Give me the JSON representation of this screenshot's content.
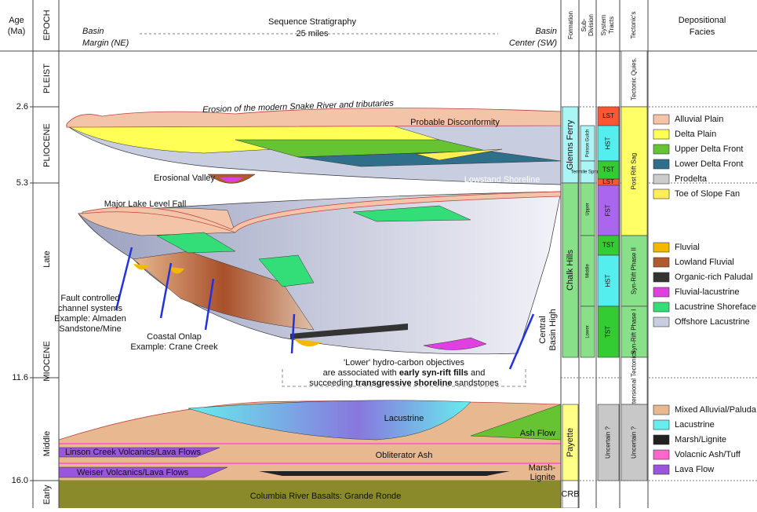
{
  "header": {
    "age_label": [
      "Age",
      "(Ma)"
    ],
    "epoch_label": "EPOCH",
    "title": "Sequence Stratigraphy",
    "scale": "25 miles",
    "left": [
      "Basin",
      "Margin (NE)"
    ],
    "right": [
      "Basin",
      "Center (SW)"
    ],
    "formation": "Formation",
    "subdivision": [
      "Sub-",
      "Division"
    ],
    "system_tracts": [
      "System",
      "Tracts"
    ],
    "tectonics": "Tectonic's",
    "facies": [
      "Depositional",
      "Facies"
    ]
  },
  "ages": [
    "2.6",
    "5.3",
    "11.6",
    "16.0"
  ],
  "epochs": [
    "PLEIST",
    "PLIOCENE",
    "Late",
    "MIOCENE",
    "Middle",
    "Early"
  ],
  "formations": [
    {
      "name": "Glenns Ferry",
      "color": "#aaf5f5"
    },
    {
      "name": "Chalk Hills",
      "color": "#88e088"
    },
    {
      "name": "Payette",
      "color": "#ffff88"
    },
    {
      "name": "CRB",
      "color": "#ffffff"
    }
  ],
  "subdivisions": [
    {
      "name": "Poison Gulch",
      "color": "#aaf5f5"
    },
    {
      "name": "Tenmile Springs",
      "color": "#aaf5f5"
    },
    {
      "name": "Upper",
      "color": "#88e088"
    },
    {
      "name": "Middle",
      "color": "#88e088"
    },
    {
      "name": "Lower",
      "color": "#88e088"
    }
  ],
  "system_tracts": [
    {
      "name": "LST",
      "color": "#ff5533"
    },
    {
      "name": "HST",
      "color": "#55eeee"
    },
    {
      "name": "TST",
      "color": "#33cc33"
    },
    {
      "name": "LST",
      "color": "#ff5533"
    },
    {
      "name": "FST",
      "color": "#aa66ee"
    },
    {
      "name": "TST",
      "color": "#33cc33"
    },
    {
      "name": "HST",
      "color": "#55eeee"
    },
    {
      "name": "TST",
      "color": "#33cc33"
    },
    {
      "name": "Uncertain ?",
      "color": "#c8c8c8"
    }
  ],
  "tectonics": [
    {
      "name": "Tectonic Quies.",
      "color": "#ffffff"
    },
    {
      "name": "Post Rift Sag",
      "color": "#ffff66"
    },
    {
      "name": "Syn-Rift Phase II",
      "color": "#88e088"
    },
    {
      "name": "Syn-Rift Phase I",
      "color": "#88e088"
    },
    {
      "name": "Extensional Tectonics",
      "color": "#ffffff"
    },
    {
      "name": "Uncertain ?",
      "color": "#c8c8c8"
    }
  ],
  "legend": [
    [
      {
        "label": "Alluvial Plain",
        "color": "#f4c4a8"
      },
      {
        "label": "Delta Plain",
        "color": "#ffff55"
      },
      {
        "label": "Upper Delta Front",
        "color": "#66c433"
      },
      {
        "label": "Lower Delta Front",
        "color": "#2f6f8a"
      },
      {
        "label": "Prodelta",
        "color": "#cccccc"
      },
      {
        "label": "Toe of Slope Fan",
        "color": "#ffee55"
      }
    ],
    [
      {
        "label": "Fluvial",
        "color": "#f5b800"
      },
      {
        "label": "Lowland Fluvial",
        "color": "#b05a30"
      },
      {
        "label": "Organic-rich Paludal",
        "color": "#333333"
      },
      {
        "label": "Fluvial-lacustrine",
        "color": "#e040e0"
      },
      {
        "label": "Lacustrine Shoreface",
        "color": "#33dd77"
      },
      {
        "label": "Offshore Lacustrine",
        "color": "#c8cde0"
      }
    ],
    [
      {
        "label": "Mixed Alluvial/Paluda",
        "color": "#e8b890"
      },
      {
        "label": "Lacustrine",
        "color": "#66eeee"
      },
      {
        "label": "Marsh/Lignite",
        "color": "#222222"
      },
      {
        "label": "Volacnic Ash/Tuff",
        "color": "#ff66cc"
      },
      {
        "label": "Lava Flow",
        "color": "#9955dd"
      }
    ]
  ],
  "annotations": {
    "erosion": "Erosion of the modern Snake River and tributaries",
    "disconformity": "Probable Disconformity",
    "valley": "Erosional Valley",
    "lowstand": "Lowstand Shoreline",
    "lake_fall": "Major Lake Level Fall",
    "fault": [
      "Fault controlled",
      "channel systems",
      "Example: Almaden",
      "Sandstone/Mine"
    ],
    "onlap": [
      "Coastal Onlap",
      "Example: Crane Creek"
    ],
    "high": [
      "Central",
      "Basin High"
    ],
    "note": [
      "'Lower' hydro-carbon objectives",
      "are associated with",
      "early syn-rift fills",
      "and",
      "succeeding",
      "transgressive shoreline",
      "sandstones"
    ],
    "lacustrine": "Lacustrine",
    "ash_flow": "Ash Flow",
    "linson": "Linson Creek Volcanics/Lava Flows",
    "ash": "Obliterator Ash",
    "weiser": "Weiser Volcanics/Lava Flows",
    "marsh": [
      "Marsh-",
      "Lignite"
    ],
    "crb": "Columbia River Basalts: Grande Ronde"
  }
}
